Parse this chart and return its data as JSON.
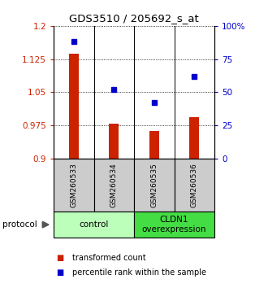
{
  "title": "GDS3510 / 205692_s_at",
  "samples": [
    "GSM260533",
    "GSM260534",
    "GSM260535",
    "GSM260536"
  ],
  "transformed_count": [
    1.138,
    0.978,
    0.962,
    0.993
  ],
  "percentile_rank": [
    88,
    52,
    42,
    62
  ],
  "ylim_left": [
    0.9,
    1.2
  ],
  "ylim_right": [
    0,
    100
  ],
  "yticks_left": [
    0.9,
    0.975,
    1.05,
    1.125,
    1.2
  ],
  "yticks_right": [
    0,
    25,
    50,
    75,
    100
  ],
  "ytick_labels_left": [
    "0.9",
    "0.975",
    "1.05",
    "1.125",
    "1.2"
  ],
  "ytick_labels_right": [
    "0",
    "25",
    "50",
    "75",
    "100%"
  ],
  "bar_color": "#cc2200",
  "dot_color": "#0000cc",
  "sample_bg_color": "#cccccc",
  "groups": [
    {
      "label": "control",
      "samples": [
        0,
        1
      ],
      "color": "#bbffbb"
    },
    {
      "label": "CLDN1\noverexpression",
      "samples": [
        2,
        3
      ],
      "color": "#44dd44"
    }
  ],
  "legend_bar_label": "transformed count",
  "legend_dot_label": "percentile rank within the sample",
  "protocol_label": "protocol"
}
